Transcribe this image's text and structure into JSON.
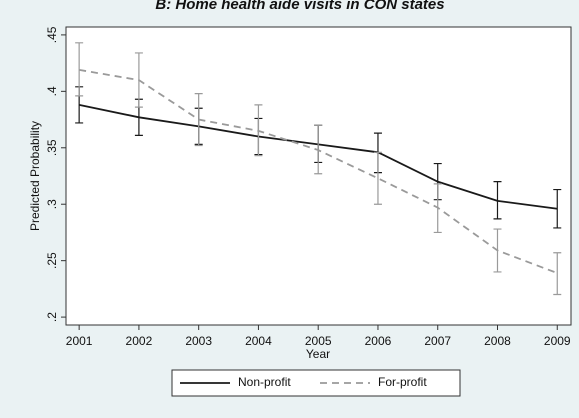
{
  "chart_data": {
    "type": "line",
    "title": "B: Home health aide visits in CON states",
    "x_label": "Year",
    "y_label": "Predicted Probability",
    "x": [
      2001,
      2002,
      2003,
      2004,
      2005,
      2006,
      2007,
      2008,
      2009
    ],
    "xlim": [
      2000.78,
      2009.23
    ],
    "xticks": [
      2001,
      2002,
      2003,
      2004,
      2005,
      2006,
      2007,
      2008,
      2009
    ],
    "ylim": [
      0.193,
      0.457
    ],
    "yticks": [
      {
        "value": 0.2,
        "label": ".2"
      },
      {
        "value": 0.25,
        "label": ".25"
      },
      {
        "value": 0.3,
        "label": ".3"
      },
      {
        "value": 0.35,
        "label": ".35"
      },
      {
        "value": 0.4,
        "label": ".4"
      },
      {
        "value": 0.45,
        "label": ".45"
      }
    ],
    "series": [
      {
        "name": "Non-profit",
        "color": "#1a1a1a",
        "dashed": false,
        "values": [
          0.388,
          0.377,
          0.369,
          0.36,
          0.353,
          0.346,
          0.32,
          0.303,
          0.296
        ],
        "ci_low": [
          0.372,
          0.361,
          0.353,
          0.344,
          0.337,
          0.328,
          0.304,
          0.287,
          0.279
        ],
        "ci_high": [
          0.404,
          0.393,
          0.385,
          0.376,
          0.37,
          0.363,
          0.336,
          0.32,
          0.313
        ]
      },
      {
        "name": "For-profit",
        "color": "#9a9a9a",
        "dashed": true,
        "values": [
          0.419,
          0.41,
          0.375,
          0.365,
          0.348,
          0.323,
          0.297,
          0.259,
          0.239
        ],
        "ci_low": [
          0.396,
          0.386,
          0.352,
          0.343,
          0.327,
          0.3,
          0.275,
          0.24,
          0.22
        ],
        "ci_high": [
          0.443,
          0.434,
          0.398,
          0.388,
          0.37,
          0.346,
          0.318,
          0.278,
          0.257
        ]
      }
    ]
  }
}
